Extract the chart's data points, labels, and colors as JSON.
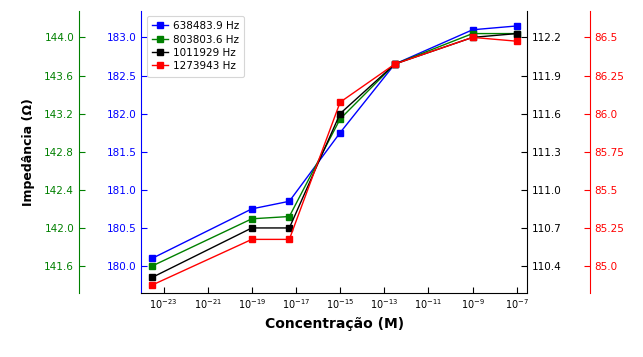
{
  "legend_labels": [
    "638483.9 Hz",
    "803803.6 Hz",
    "1011929 Hz",
    "1273943 Hz"
  ],
  "legend_colors": [
    "blue",
    "green",
    "black",
    "red"
  ],
  "xlabel": "Concentração (M)",
  "ylabel": "Impedância (Ω)",
  "x_values": [
    3e-24,
    1e-19,
    5e-18,
    1e-15,
    3e-13,
    1e-09,
    1e-07
  ],
  "blue_y": [
    180.1,
    180.75,
    180.85,
    181.75,
    182.65,
    183.1,
    183.15
  ],
  "green_y": [
    180.0,
    180.62,
    180.65,
    181.93,
    182.65,
    183.05,
    183.05
  ],
  "black_y": [
    179.85,
    180.5,
    180.5,
    182.0,
    182.65,
    183.0,
    183.05
  ],
  "red_y": [
    179.75,
    180.35,
    180.35,
    182.15,
    182.65,
    183.0,
    182.95
  ],
  "left_green_yticks_labels": [
    141.6,
    142.0,
    142.4,
    142.8,
    143.2,
    143.6,
    144.0
  ],
  "left_green_yticks_pos": [
    180.0,
    180.5,
    181.0,
    181.5,
    182.0,
    182.5,
    183.0
  ],
  "left_blue_yticks": [
    180.0,
    180.5,
    181.0,
    181.5,
    182.0,
    182.5,
    183.0
  ],
  "right_black_ticks_labels": [
    110.4,
    110.7,
    111.0,
    111.3,
    111.6,
    111.9,
    112.2
  ],
  "right_black_ticks_pos": [
    180.0,
    180.5,
    181.0,
    181.5,
    182.0,
    182.5,
    183.0
  ],
  "right_red_ticks_labels": [
    85.0,
    85.25,
    85.5,
    85.75,
    86.0,
    86.25,
    86.5
  ],
  "right_red_ticks_pos": [
    180.0,
    180.5,
    181.0,
    181.5,
    182.0,
    182.5,
    183.0
  ],
  "ylim": [
    179.65,
    183.35
  ],
  "xlim": [
    1e-24,
    3e-07
  ],
  "xticks": [
    1e-23,
    1e-21,
    1e-19,
    1e-17,
    1e-15,
    1e-13,
    1e-11,
    1e-09,
    1e-07
  ],
  "background_color": "#ffffff"
}
